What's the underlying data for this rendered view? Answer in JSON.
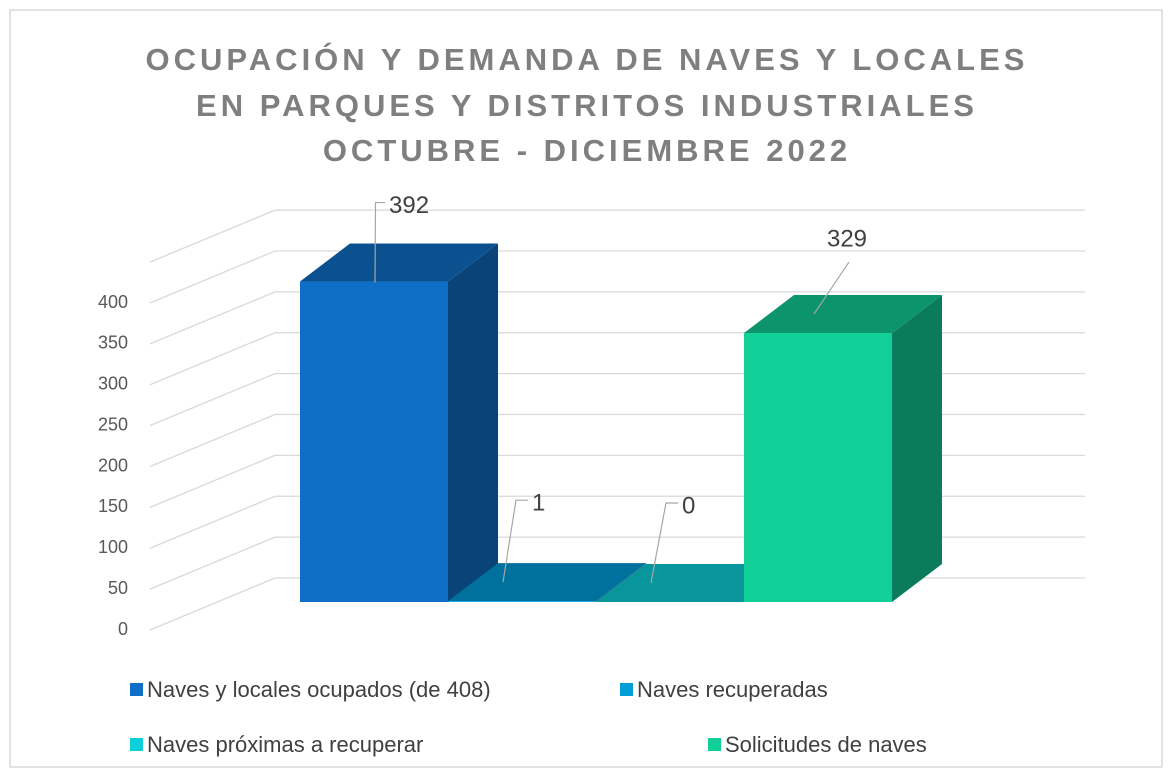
{
  "chart_data": {
    "type": "bar3d",
    "title": [
      "OCUPACIÓN Y DEMANDA DE NAVES Y LOCALES",
      "EN PARQUES Y DISTRITOS INDUSTRIALES",
      "OCTUBRE - DICIEMBRE 2022"
    ],
    "categories": [
      null
    ],
    "series": [
      {
        "name": "Naves y locales ocupados (de 408)",
        "color": "#0f6fc6",
        "values": [
          392
        ]
      },
      {
        "name": "Naves recuperadas",
        "color": "#009dd9",
        "values": [
          1
        ]
      },
      {
        "name": "Naves próximas a recuperar",
        "color": "#0bd0d9",
        "values": [
          0
        ]
      },
      {
        "name": "Solicitudes de naves",
        "color": "#10cf97",
        "values": [
          329
        ]
      }
    ],
    "ylim": [
      0,
      450
    ],
    "yticks": [
      0,
      50,
      100,
      150,
      200,
      250,
      300,
      350,
      400
    ],
    "grid": true,
    "legend": "bottom"
  }
}
